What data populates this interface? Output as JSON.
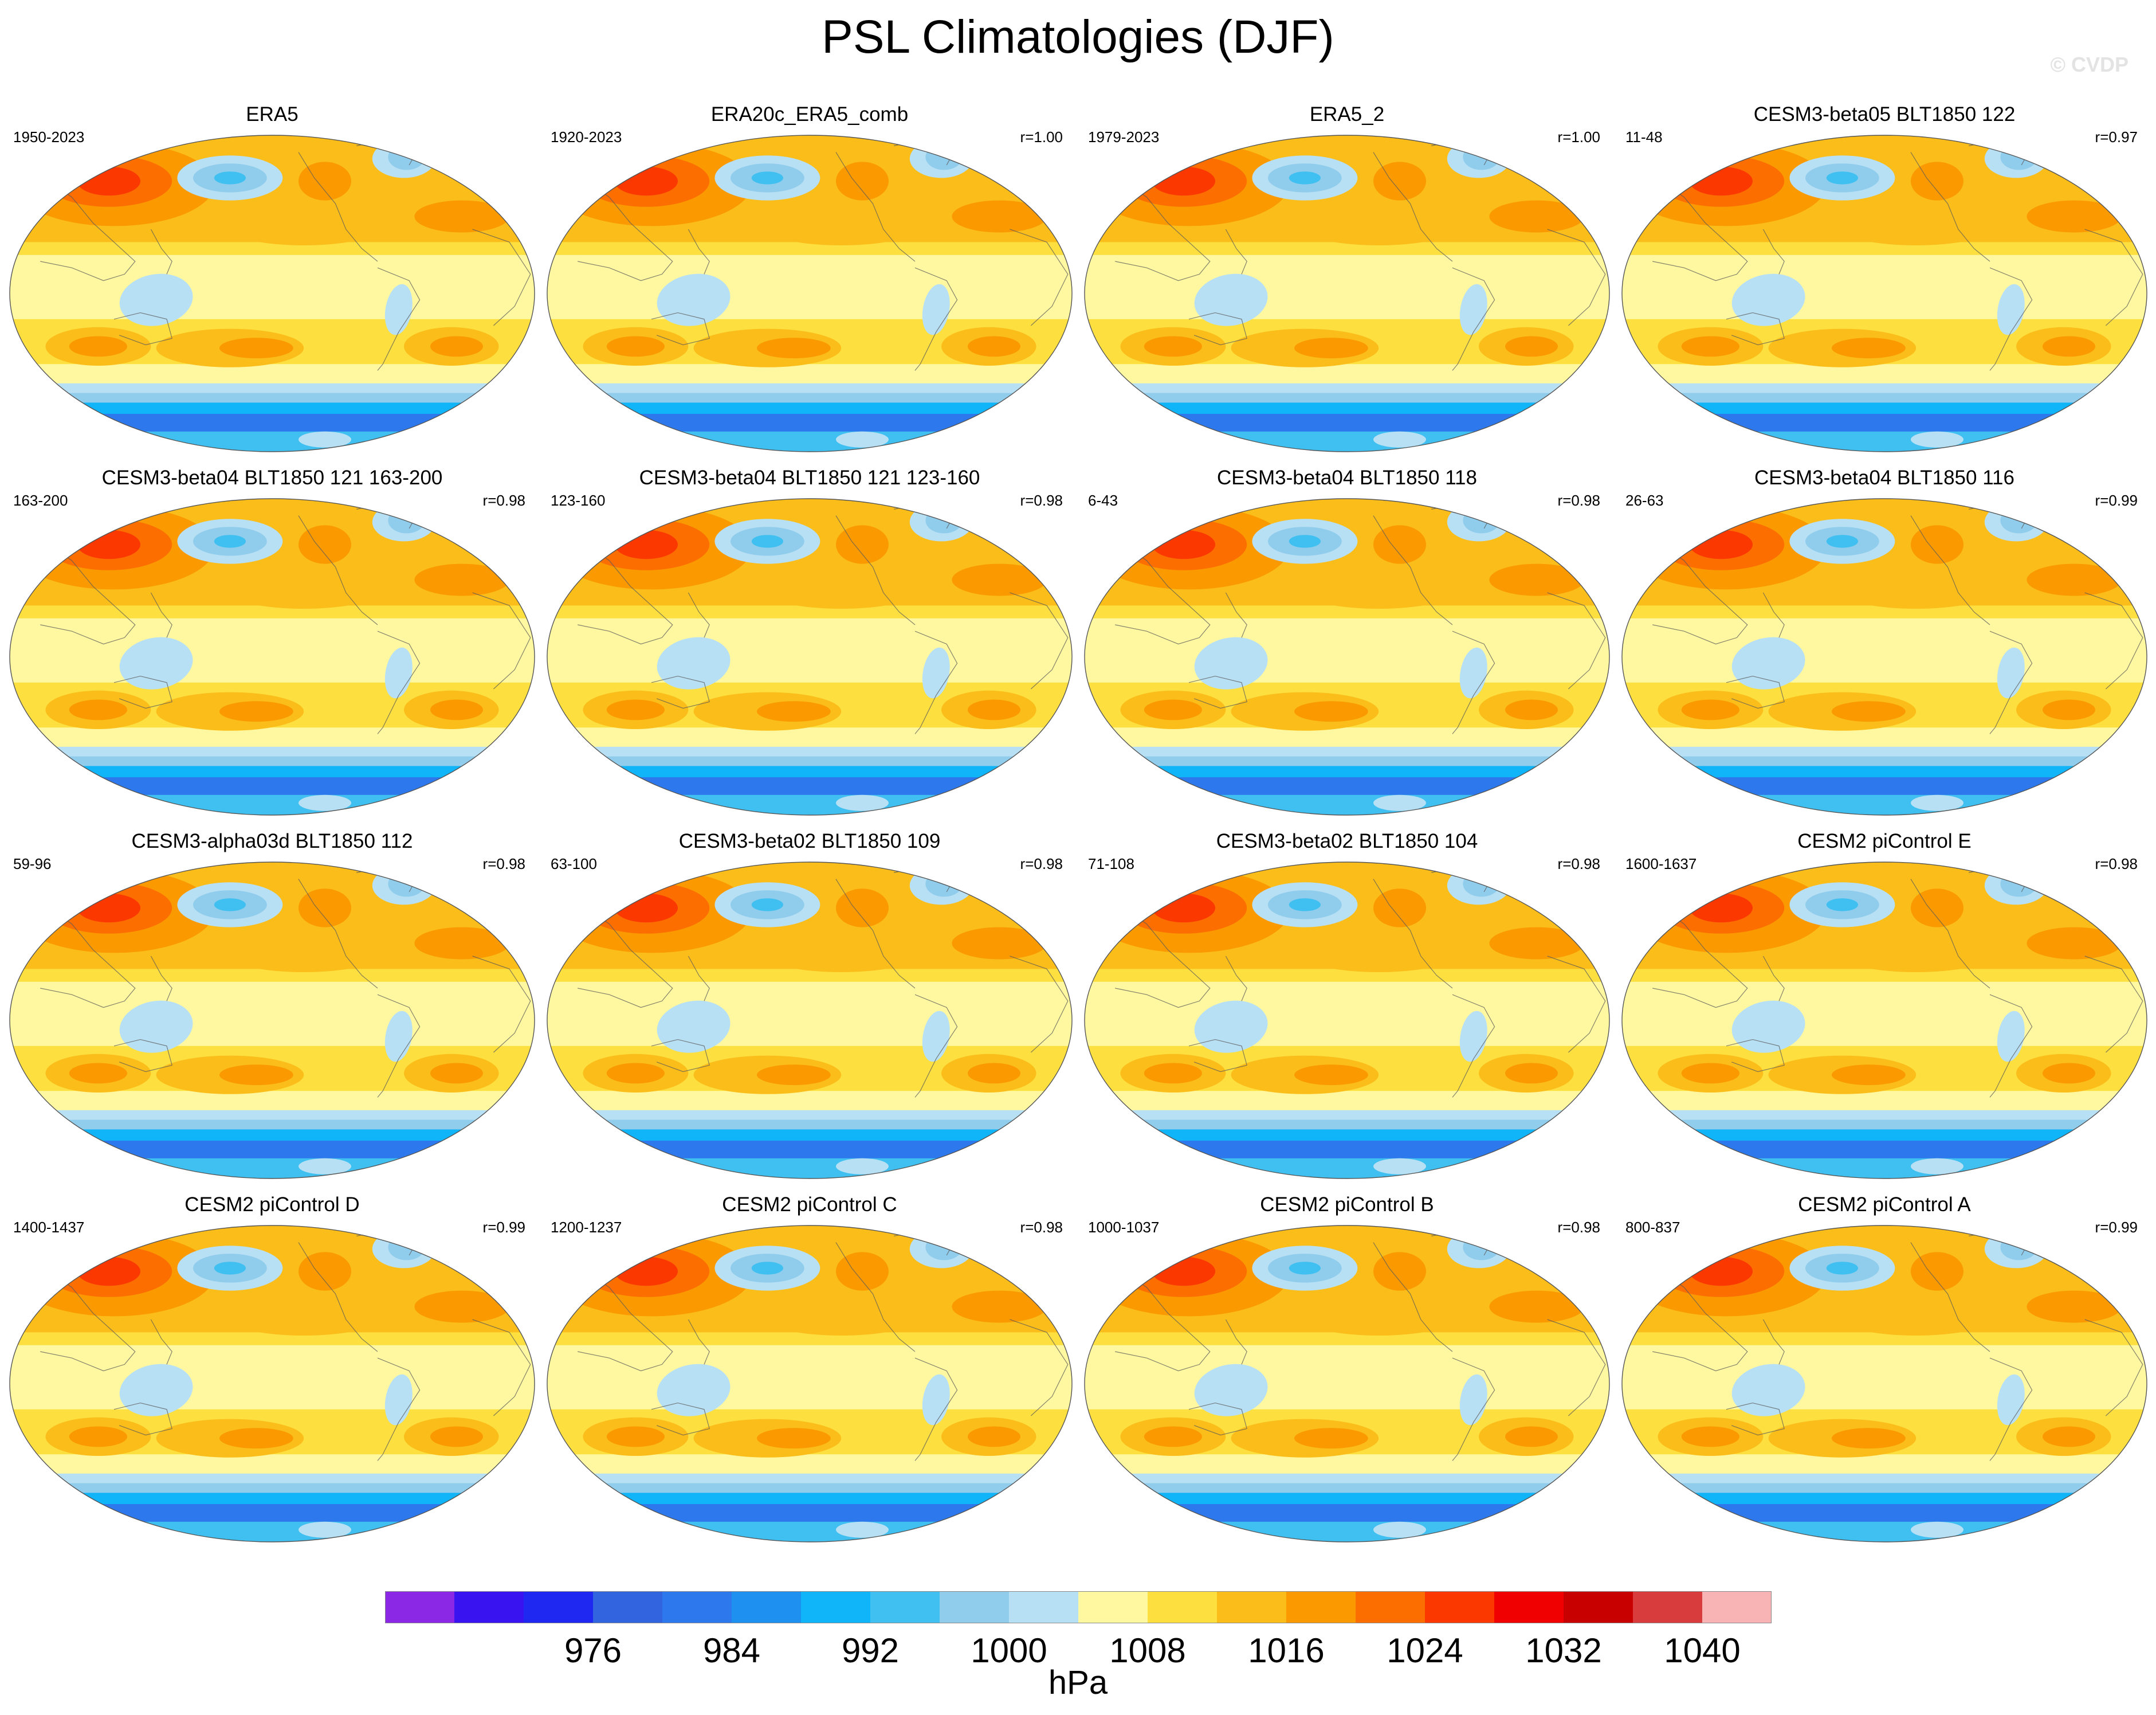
{
  "title": "PSL Climatologies (DJF)",
  "watermark": "© CVDP",
  "chart_data": {
    "type": "heatmap",
    "variable": "PSL",
    "season": "DJF",
    "projection": "global map (Robinson-like), centered on the Pacific",
    "panels": [
      {
        "name": "ERA5",
        "years": "1950-2023",
        "r": ""
      },
      {
        "name": "ERA20c_ERA5_comb",
        "years": "1920-2023",
        "r": "r=1.00"
      },
      {
        "name": "ERA5_2",
        "years": "1979-2023",
        "r": "r=1.00"
      },
      {
        "name": "CESM3-beta05 BLT1850 122",
        "years": "11-48",
        "r": "r=0.97"
      },
      {
        "name": "CESM3-beta04 BLT1850 121 163-200",
        "years": "163-200",
        "r": "r=0.98"
      },
      {
        "name": "CESM3-beta04 BLT1850 121 123-160",
        "years": "123-160",
        "r": "r=0.98"
      },
      {
        "name": "CESM3-beta04 BLT1850 118",
        "years": "6-43",
        "r": "r=0.98"
      },
      {
        "name": "CESM3-beta04 BLT1850 116",
        "years": "26-63",
        "r": "r=0.99"
      },
      {
        "name": "CESM3-alpha03d BLT1850 112",
        "years": "59-96",
        "r": "r=0.98"
      },
      {
        "name": "CESM3-beta02 BLT1850 109",
        "years": "63-100",
        "r": "r=0.98"
      },
      {
        "name": "CESM3-beta02 BLT1850 104",
        "years": "71-108",
        "r": "r=0.98"
      },
      {
        "name": "CESM2 piControl E",
        "years": "1600-1637",
        "r": "r=0.98"
      },
      {
        "name": "CESM2 piControl D",
        "years": "1400-1437",
        "r": "r=0.99"
      },
      {
        "name": "CESM2 piControl C",
        "years": "1200-1237",
        "r": "r=0.98"
      },
      {
        "name": "CESM2 piControl B",
        "years": "1000-1037",
        "r": "r=0.98"
      },
      {
        "name": "CESM2 piControl A",
        "years": "800-837",
        "r": "r=0.99"
      }
    ],
    "colorbar": {
      "unit": "hPa",
      "labels": [
        "976",
        "984",
        "992",
        "1000",
        "1008",
        "1016",
        "1024",
        "1032",
        "1040"
      ],
      "levels": [
        972,
        976,
        980,
        984,
        988,
        992,
        996,
        1000,
        1004,
        1008,
        1012,
        1016,
        1020,
        1024,
        1028,
        1032,
        1036,
        1040
      ],
      "colors": [
        "#8a28e6",
        "#3a14f0",
        "#1e28f0",
        "#3264e0",
        "#2c78ec",
        "#1e90f0",
        "#10b4f8",
        "#40c0f0",
        "#90ccec",
        "#b8e0f4",
        "#fff8a0",
        "#fde040",
        "#fbbd1a",
        "#fa9a00",
        "#fc6e00",
        "#fa3800",
        "#f00000",
        "#c80000",
        "#d83c3c",
        "#f8b4b4"
      ]
    }
  }
}
